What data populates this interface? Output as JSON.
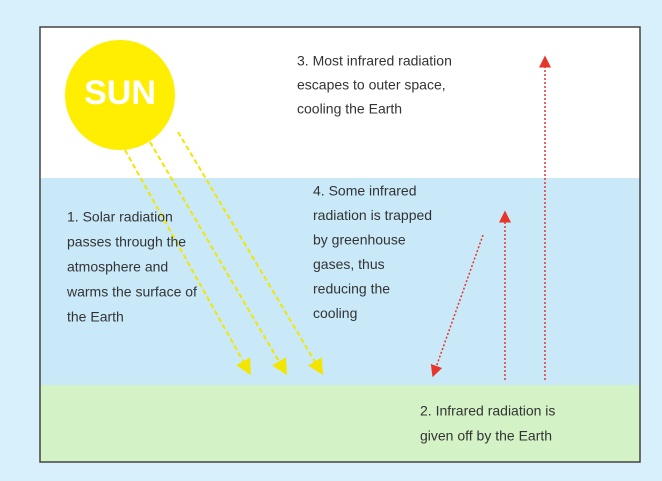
{
  "sun": {
    "label": "SUN"
  },
  "notes": [
    {
      "lines": [
        "1. Solar radiation",
        "passes through the",
        "atmosphere and",
        "warms the surface of",
        "the Earth"
      ]
    },
    {
      "lines": [
        "2. Infrared radiation is",
        "given off by the Earth"
      ]
    },
    {
      "lines": [
        "3. Most infrared radiation",
        "escapes to outer space,",
        "cooling the Earth"
      ]
    },
    {
      "lines": [
        "4. Some infrared",
        "radiation is trapped",
        "by greenhouse",
        "gases, thus",
        "reducing the",
        "cooling"
      ]
    }
  ]
}
